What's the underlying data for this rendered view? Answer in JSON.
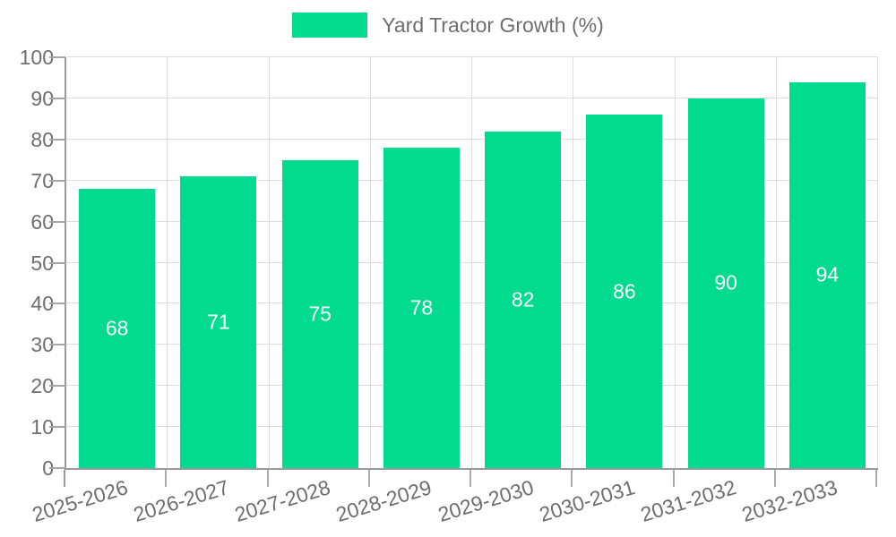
{
  "chart_data": {
    "type": "bar",
    "title": "",
    "legend": "Yard Tractor Growth (%)",
    "legend_position": "top",
    "categories": [
      "2025-2026",
      "2026-2027",
      "2027-2028",
      "2028-2029",
      "2029-2030",
      "2030-2031",
      "2031-2032",
      "2032-2033"
    ],
    "values": [
      68,
      71,
      75,
      78,
      82,
      86,
      90,
      94
    ],
    "xlabel": "",
    "ylabel": "",
    "ylim": [
      0,
      100
    ],
    "ytick_step": 10,
    "grid": true,
    "colors": {
      "bar": "#00db8e",
      "bar_value_label": "#ffffff",
      "gridline": "#dddddd",
      "axis_line": "#9a9a9a",
      "axis_text": "#6e6e6e"
    }
  }
}
